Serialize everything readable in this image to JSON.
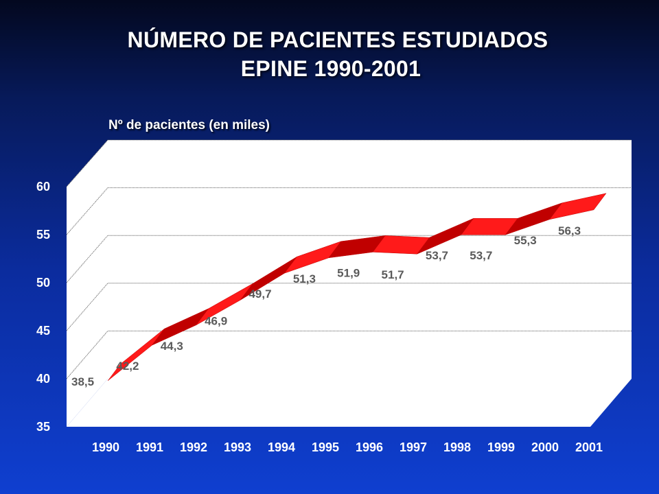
{
  "title_lines": [
    "NÚMERO DE PACIENTES ESTUDIADOS",
    "EPINE 1990-2001"
  ],
  "chart_data": {
    "type": "area",
    "title": "NÚMERO DE PACIENTES ESTUDIADOS EPINE 1990-2001",
    "ylabel": "Nº de pacientes (en miles)",
    "xlabel": "",
    "categories": [
      "1990",
      "1991",
      "1992",
      "1993",
      "1994",
      "1995",
      "1996",
      "1997",
      "1998",
      "1999",
      "2000",
      "2001"
    ],
    "values": [
      38.5,
      42.2,
      44.3,
      46.9,
      49.7,
      51.3,
      51.9,
      51.7,
      53.7,
      53.7,
      55.3,
      56.3
    ],
    "value_labels": [
      "38,5",
      "42,2",
      "44,3",
      "46,9",
      "49,7",
      "51,3",
      "51,9",
      "51,7",
      "53,7",
      "53,7",
      "55,3",
      "56,3"
    ],
    "ylim": [
      35,
      60
    ],
    "yticks": [
      "35",
      "40",
      "45",
      "50",
      "55",
      "60"
    ],
    "grid": true,
    "style": "3d ribbon",
    "colors": {
      "ribbon": "#ff1a1a",
      "ribbon_dark": "#c00000",
      "wall": "#ffffff",
      "gridline": "#555555",
      "data_label": "#5a5a5a"
    }
  }
}
